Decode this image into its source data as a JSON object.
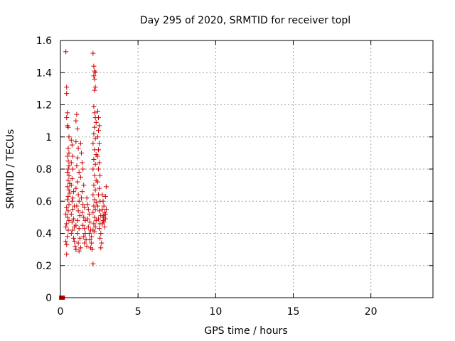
{
  "chart_data": {
    "type": "scatter",
    "title": "Day 295 of 2020, SRMTID for receiver topl",
    "xlabel": "GPS time / hours",
    "ylabel": "SRMTID / TECUs",
    "xlim": [
      0,
      24
    ],
    "ylim": [
      0,
      1.6
    ],
    "xticks": [
      0,
      5,
      10,
      15,
      20
    ],
    "yticks": [
      0,
      0.2,
      0.4,
      0.6,
      0.8,
      1,
      1.2,
      1.4,
      1.6
    ],
    "xtick_labels": [
      "0",
      "5",
      "10",
      "15",
      "20"
    ],
    "ytick_labels": [
      "0",
      "0.2",
      "0.4",
      "0.6",
      "0.8",
      "1",
      "1.2",
      "1.4",
      "1.6"
    ],
    "grid": true,
    "marker": "+",
    "color": "#cc0000",
    "zero_markers_x": [
      0.05,
      0.1,
      0.15
    ],
    "series": [
      {
        "name": "SRMTID",
        "points": [
          [
            0.35,
            1.53
          ],
          [
            0.4,
            1.31
          ],
          [
            0.4,
            1.27
          ],
          [
            0.45,
            1.15
          ],
          [
            0.4,
            1.12
          ],
          [
            0.45,
            1.07
          ],
          [
            0.5,
            1.06
          ],
          [
            0.55,
            1.0
          ],
          [
            0.5,
            0.93
          ],
          [
            0.55,
            0.9
          ],
          [
            0.45,
            0.88
          ],
          [
            0.5,
            0.85
          ],
          [
            0.55,
            0.82
          ],
          [
            0.5,
            0.8
          ],
          [
            0.45,
            0.78
          ],
          [
            0.55,
            0.76
          ],
          [
            0.5,
            0.73
          ],
          [
            0.6,
            0.71
          ],
          [
            0.45,
            0.69
          ],
          [
            0.55,
            0.67
          ],
          [
            0.6,
            0.65
          ],
          [
            0.5,
            0.63
          ],
          [
            0.45,
            0.61
          ],
          [
            0.55,
            0.58
          ],
          [
            0.4,
            0.56
          ],
          [
            0.5,
            0.54
          ],
          [
            0.35,
            0.52
          ],
          [
            0.45,
            0.5
          ],
          [
            0.55,
            0.48
          ],
          [
            0.4,
            0.46
          ],
          [
            0.35,
            0.44
          ],
          [
            0.5,
            0.42
          ],
          [
            0.45,
            0.38
          ],
          [
            0.35,
            0.35
          ],
          [
            0.4,
            0.33
          ],
          [
            0.4,
            0.27
          ],
          [
            0.7,
            0.98
          ],
          [
            0.75,
            0.95
          ],
          [
            0.8,
            0.88
          ],
          [
            0.7,
            0.84
          ],
          [
            0.8,
            0.8
          ],
          [
            0.75,
            0.74
          ],
          [
            0.7,
            0.7
          ],
          [
            0.85,
            0.66
          ],
          [
            0.8,
            0.62
          ],
          [
            0.75,
            0.6
          ],
          [
            0.9,
            0.57
          ],
          [
            0.8,
            0.55
          ],
          [
            0.7,
            0.52
          ],
          [
            0.85,
            0.49
          ],
          [
            0.75,
            0.47
          ],
          [
            0.9,
            0.44
          ],
          [
            0.8,
            0.42
          ],
          [
            0.7,
            0.4
          ],
          [
            0.85,
            0.37
          ],
          [
            0.9,
            0.35
          ],
          [
            0.95,
            0.32
          ],
          [
            1.0,
            0.3
          ],
          [
            1.0,
            1.1
          ],
          [
            1.05,
            1.14
          ],
          [
            1.1,
            1.05
          ],
          [
            1.0,
            0.97
          ],
          [
            1.15,
            0.93
          ],
          [
            1.1,
            0.87
          ],
          [
            1.05,
            0.82
          ],
          [
            1.2,
            0.78
          ],
          [
            1.1,
            0.72
          ],
          [
            1.0,
            0.68
          ],
          [
            1.15,
            0.64
          ],
          [
            1.2,
            0.6
          ],
          [
            1.05,
            0.57
          ],
          [
            1.15,
            0.54
          ],
          [
            1.25,
            0.51
          ],
          [
            1.1,
            0.48
          ],
          [
            1.0,
            0.45
          ],
          [
            1.2,
            0.43
          ],
          [
            1.1,
            0.4
          ],
          [
            1.25,
            0.37
          ],
          [
            1.15,
            0.34
          ],
          [
            1.3,
            0.31
          ],
          [
            1.2,
            0.29
          ],
          [
            1.3,
            0.96
          ],
          [
            1.35,
            0.9
          ],
          [
            1.4,
            0.84
          ],
          [
            1.45,
            0.8
          ],
          [
            1.3,
            0.75
          ],
          [
            1.5,
            0.7
          ],
          [
            1.4,
            0.66
          ],
          [
            1.35,
            0.62
          ],
          [
            1.45,
            0.58
          ],
          [
            1.55,
            0.56
          ],
          [
            1.4,
            0.53
          ],
          [
            1.5,
            0.5
          ],
          [
            1.6,
            0.48
          ],
          [
            1.45,
            0.45
          ],
          [
            1.55,
            0.43
          ],
          [
            1.6,
            0.4
          ],
          [
            1.5,
            0.38
          ],
          [
            1.65,
            0.36
          ],
          [
            1.55,
            0.34
          ],
          [
            1.7,
            0.32
          ],
          [
            1.7,
            0.62
          ],
          [
            1.75,
            0.58
          ],
          [
            1.8,
            0.55
          ],
          [
            1.85,
            0.52
          ],
          [
            1.75,
            0.49
          ],
          [
            1.9,
            0.47
          ],
          [
            1.8,
            0.44
          ],
          [
            1.95,
            0.42
          ],
          [
            1.85,
            0.4
          ],
          [
            2.0,
            0.38
          ],
          [
            1.9,
            0.36
          ],
          [
            2.0,
            0.34
          ],
          [
            1.95,
            0.31
          ],
          [
            2.05,
            0.3
          ],
          [
            2.1,
            0.21
          ],
          [
            2.1,
            1.52
          ],
          [
            2.15,
            1.44
          ],
          [
            2.2,
            1.41
          ],
          [
            2.25,
            1.4
          ],
          [
            2.15,
            1.38
          ],
          [
            2.2,
            1.36
          ],
          [
            2.25,
            1.31
          ],
          [
            2.2,
            1.29
          ],
          [
            2.15,
            1.19
          ],
          [
            2.2,
            1.15
          ],
          [
            2.25,
            1.12
          ],
          [
            2.3,
            1.09
          ],
          [
            2.2,
            1.06
          ],
          [
            2.15,
            1.02
          ],
          [
            2.25,
            0.99
          ],
          [
            2.1,
            0.96
          ],
          [
            2.2,
            0.92
          ],
          [
            2.3,
            0.89
          ],
          [
            2.15,
            0.86
          ],
          [
            2.25,
            0.83
          ],
          [
            2.1,
            0.8
          ],
          [
            2.2,
            0.76
          ],
          [
            2.3,
            0.73
          ],
          [
            2.15,
            0.7
          ],
          [
            2.25,
            0.67
          ],
          [
            2.1,
            0.64
          ],
          [
            2.2,
            0.61
          ],
          [
            2.3,
            0.59
          ],
          [
            2.15,
            0.57
          ],
          [
            2.25,
            0.55
          ],
          [
            2.1,
            0.53
          ],
          [
            2.2,
            0.5
          ],
          [
            2.3,
            0.48
          ],
          [
            2.15,
            0.46
          ],
          [
            2.25,
            0.44
          ],
          [
            2.1,
            0.42
          ],
          [
            2.2,
            0.41
          ],
          [
            2.4,
            1.16
          ],
          [
            2.45,
            1.12
          ],
          [
            2.5,
            1.07
          ],
          [
            2.45,
            1.04
          ],
          [
            2.4,
            1.0
          ],
          [
            2.5,
            0.96
          ],
          [
            2.45,
            0.92
          ],
          [
            2.4,
            0.88
          ],
          [
            2.5,
            0.84
          ],
          [
            2.45,
            0.8
          ],
          [
            2.55,
            0.76
          ],
          [
            2.4,
            0.72
          ],
          [
            2.5,
            0.68
          ],
          [
            2.45,
            0.64
          ],
          [
            2.55,
            0.6
          ],
          [
            2.4,
            0.57
          ],
          [
            2.5,
            0.54
          ],
          [
            2.6,
            0.51
          ],
          [
            2.45,
            0.49
          ],
          [
            2.55,
            0.46
          ],
          [
            2.5,
            0.43
          ],
          [
            2.6,
            0.4
          ],
          [
            2.55,
            0.37
          ],
          [
            2.65,
            0.34
          ],
          [
            2.6,
            0.31
          ],
          [
            2.7,
            0.64
          ],
          [
            2.75,
            0.6
          ],
          [
            2.8,
            0.57
          ],
          [
            2.7,
            0.55
          ],
          [
            2.85,
            0.53
          ],
          [
            2.75,
            0.51
          ],
          [
            2.9,
            0.49
          ],
          [
            2.8,
            0.47
          ],
          [
            2.7,
            0.46
          ],
          [
            2.85,
            0.44
          ],
          [
            2.9,
            0.52
          ],
          [
            2.95,
            0.55
          ],
          [
            2.9,
            0.63
          ],
          [
            2.95,
            0.69
          ],
          [
            2.8,
            0.5
          ],
          [
            2.75,
            0.48
          ]
        ]
      }
    ]
  }
}
